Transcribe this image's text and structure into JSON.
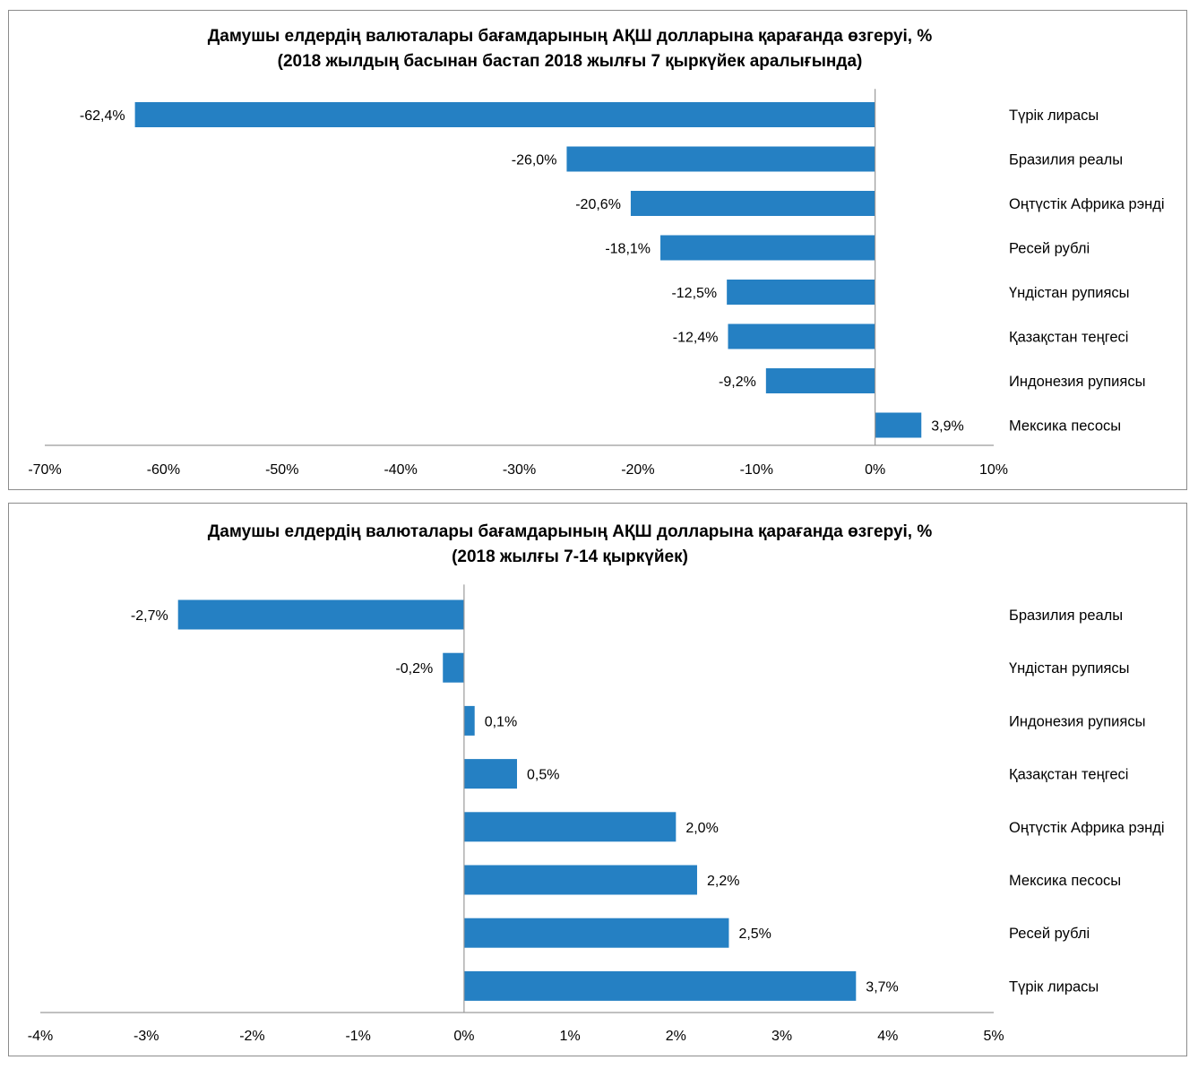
{
  "chart_data": [
    {
      "type": "bar",
      "orientation": "horizontal",
      "title": "Дамушы елдердің  валюталары бағамдарының АҚШ долларына қарағанда өзгеруі, %",
      "subtitle": "(2018 жылдың басынан бастап 2018 жылғы 7 қыркүйек  аралығында)",
      "categories": [
        "Түрік лирасы",
        "Бразилия реалы",
        "Оңтүстік Африка рэнді",
        "Ресей рублі",
        "Үндістан рупиясы",
        "Қазақстан теңгесі",
        "Индонезия  рупиясы",
        "Мексика  песосы"
      ],
      "values": [
        -62.4,
        -26.0,
        -20.6,
        -18.1,
        -12.5,
        -12.4,
        -9.2,
        3.9
      ],
      "value_labels": [
        "-62,4%",
        "-26,0%",
        "-20,6%",
        "-18,1%",
        "-12,5%",
        "-12,4%",
        "-9,2%",
        "3,9%"
      ],
      "xlim": [
        -70,
        10
      ],
      "x_ticks": [
        -70,
        -60,
        -50,
        -40,
        -30,
        -20,
        -10,
        0,
        10
      ],
      "x_tick_labels": [
        "-70%",
        "-60%",
        "-50%",
        "-40%",
        "-30%",
        "-20%",
        "-10%",
        "0%",
        "10%"
      ],
      "bar_color": "#2580c3",
      "grid": false,
      "legend": "none"
    },
    {
      "type": "bar",
      "orientation": "horizontal",
      "title": "Дамушы елдердің  валюталары бағамдарының АҚШ долларына қарағанда өзгеруі, %",
      "subtitle": "(2018 жылғы  7-14 қыркүйек)",
      "categories": [
        "Бразилия реалы",
        "Үндістан рупиясы",
        "Индонезия  рупиясы",
        "Қазақстан теңгесі",
        "Оңтүстік Африка рэнді",
        "Мексика  песосы",
        "Ресей рублі",
        "Түрік лирасы"
      ],
      "values": [
        -2.7,
        -0.2,
        0.1,
        0.5,
        2.0,
        2.2,
        2.5,
        3.7
      ],
      "value_labels": [
        "-2,7%",
        "-0,2%",
        "0,1%",
        "0,5%",
        "2,0%",
        "2,2%",
        "2,5%",
        "3,7%"
      ],
      "xlim": [
        -4,
        5
      ],
      "x_ticks": [
        -4,
        -3,
        -2,
        -1,
        0,
        1,
        2,
        3,
        4,
        5
      ],
      "x_tick_labels": [
        "-4%",
        "-3%",
        "-2%",
        "-1%",
        "0%",
        "1%",
        "2%",
        "3%",
        "4%",
        "5%"
      ],
      "bar_color": "#2580c3",
      "grid": false,
      "legend": "none"
    }
  ]
}
